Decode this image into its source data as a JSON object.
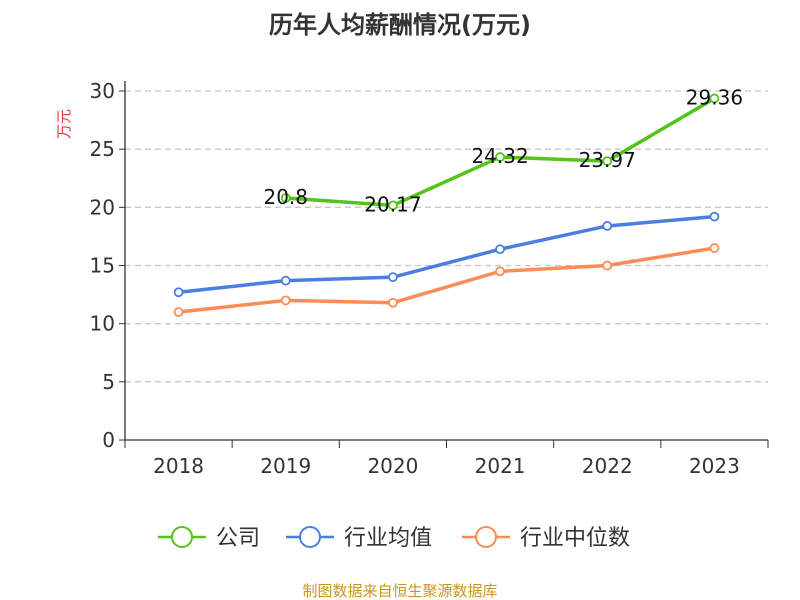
{
  "chart_data": {
    "type": "line",
    "title": "历年人均薪酬情况(万元)",
    "ylabel": "万元",
    "xlabel": "",
    "categories": [
      "2018",
      "2019",
      "2020",
      "2021",
      "2022",
      "2023"
    ],
    "ylim": [
      0,
      30
    ],
    "yticks": [
      0,
      5,
      10,
      15,
      20,
      25,
      30
    ],
    "grid": true,
    "legend_placement": "bottom",
    "series": [
      {
        "name": "公司",
        "color": "#52c41a",
        "values": [
          null,
          20.8,
          20.17,
          24.32,
          23.97,
          29.36
        ],
        "labels": [
          "",
          "20.8",
          "20.17",
          "24.32",
          "23.97",
          "29.36"
        ]
      },
      {
        "name": "行业均值",
        "color": "#4a7ee0",
        "values": [
          12.7,
          13.7,
          14.0,
          16.4,
          18.4,
          19.2
        ]
      },
      {
        "name": "行业中位数",
        "color": "#ff8c55",
        "values": [
          11.0,
          12.0,
          11.8,
          14.5,
          15.0,
          16.5
        ]
      }
    ]
  },
  "footer": "制图数据来自恒生聚源数据库",
  "colors": {
    "title": "#333333",
    "ylabel": "#e0363a",
    "footer": "#c8961e"
  }
}
